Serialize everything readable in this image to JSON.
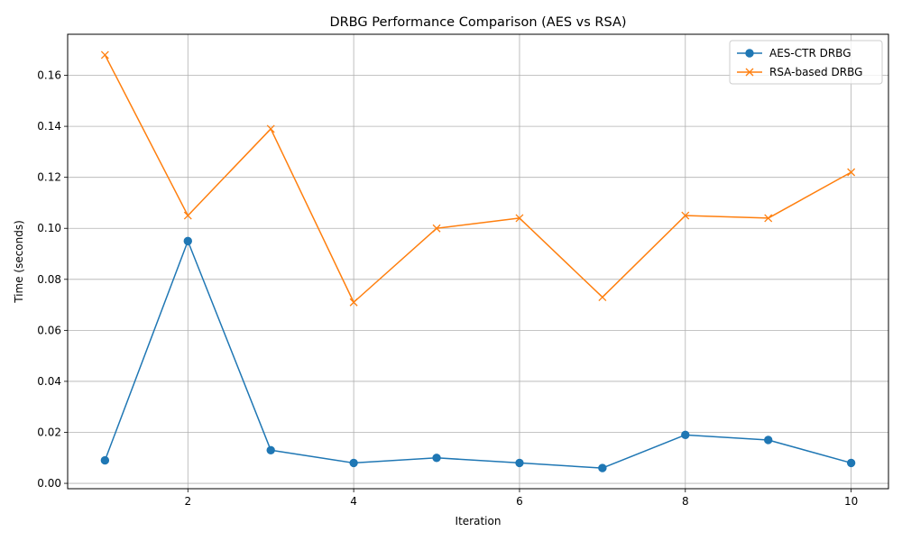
{
  "chart_data": {
    "type": "line",
    "title": "DRBG Performance Comparison (AES vs RSA)",
    "xlabel": "Iteration",
    "ylabel": "Time (seconds)",
    "x": [
      1,
      2,
      3,
      4,
      5,
      6,
      7,
      8,
      9,
      10
    ],
    "xlim": [
      0.55,
      10.45
    ],
    "ylim": [
      -0.0021,
      0.1761
    ],
    "xticks": [
      2,
      4,
      6,
      8,
      10
    ],
    "xtick_labels": [
      "2",
      "4",
      "6",
      "8",
      "10"
    ],
    "yticks": [
      0.0,
      0.02,
      0.04,
      0.06,
      0.08,
      0.1,
      0.12,
      0.14,
      0.16
    ],
    "ytick_labels": [
      "0.00",
      "0.02",
      "0.04",
      "0.06",
      "0.08",
      "0.10",
      "0.12",
      "0.14",
      "0.16"
    ],
    "grid": true,
    "legend_position": "top-right",
    "series": [
      {
        "name": "AES-CTR DRBG",
        "color": "#1f77b4",
        "marker": "circle",
        "values": [
          0.009,
          0.095,
          0.013,
          0.008,
          0.01,
          0.008,
          0.006,
          0.019,
          0.017,
          0.008
        ]
      },
      {
        "name": "RSA-based DRBG",
        "color": "#ff7f0e",
        "marker": "x",
        "values": [
          0.168,
          0.105,
          0.139,
          0.071,
          0.1,
          0.104,
          0.073,
          0.105,
          0.104,
          0.122
        ]
      }
    ]
  }
}
